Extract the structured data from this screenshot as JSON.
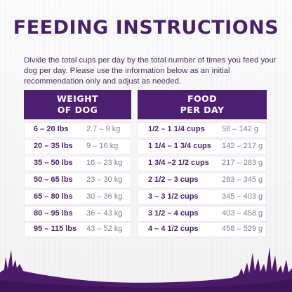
{
  "title": "FEEDING INSTRUCTIONS",
  "intro": "Divide the total cups per day by the total number of times you feed your dog per day. Please use the information below as an initial recommendation only and adjust as needed.",
  "headers": {
    "weight_line1": "WEIGHT",
    "weight_line2": "OF DOG",
    "food_line1": "FOOD",
    "food_line2": "PER DAY"
  },
  "rows": [
    {
      "lbs": "6 – 20 lbs",
      "kg": "2.7 – 9 kg",
      "cups": "1/2 – 1 1/4 cups",
      "grams": "58 – 142 g"
    },
    {
      "lbs": "20 – 35 lbs",
      "kg": "9 – 16 kg",
      "cups": "1 1/4 – 1 3/4 cups",
      "grams": "142 – 217 g"
    },
    {
      "lbs": "35 – 50 lbs",
      "kg": "16 – 23 kg",
      "cups": "1 3/4 –2 1/2 cups",
      "grams": "217 – 283 g"
    },
    {
      "lbs": "50 – 65 lbs",
      "kg": "23 – 30 kg",
      "cups": "2 1/2 – 3 cups",
      "grams": "283 – 345 g"
    },
    {
      "lbs": "65 – 80 lbs",
      "kg": "30 – 36 kg",
      "cups": "3 – 3 1/2 cups",
      "grams": "345 – 403 g"
    },
    {
      "lbs": "80 – 95 lbs",
      "kg": "36 – 43 kg",
      "cups": "3 1/2 – 4 cups",
      "grams": "403 – 458 g"
    },
    {
      "lbs": "95 – 115 lbs",
      "kg": "43 – 52 kg",
      "cups": "4 – 4 1/2 cups",
      "grams": "458 – 529 g"
    }
  ],
  "colors": {
    "brand_purple": "#4d1f72",
    "text_purple": "#4a1f6e",
    "muted_text": "#8a7a98",
    "grass": "#4b1a6b"
  }
}
